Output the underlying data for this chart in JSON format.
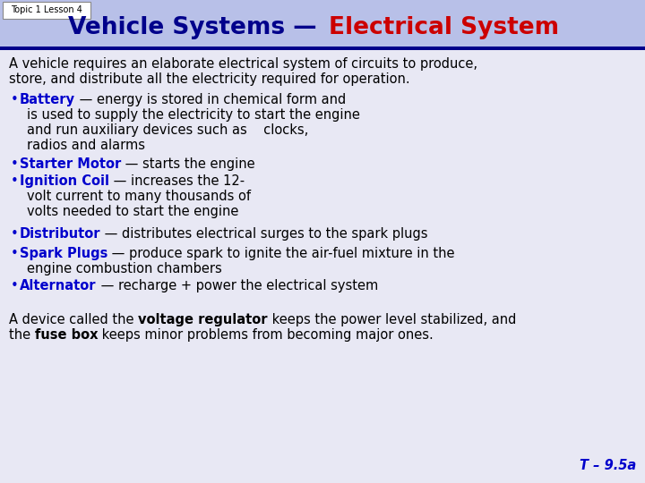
{
  "title_part1": "Vehicle Systems — ",
  "title_part2": "Electrical System",
  "topic_label": "Topic 1 Lesson 4",
  "header_bg": "#b8c0e8",
  "header_dark_bar": "#00008b",
  "title_color": "#00008b",
  "title_red": "#cc0000",
  "text_color": "#000000",
  "bullet_color": "#0000cc",
  "body_bg_color": "#e8e8f4",
  "footer_ref": "T – 9.5a"
}
